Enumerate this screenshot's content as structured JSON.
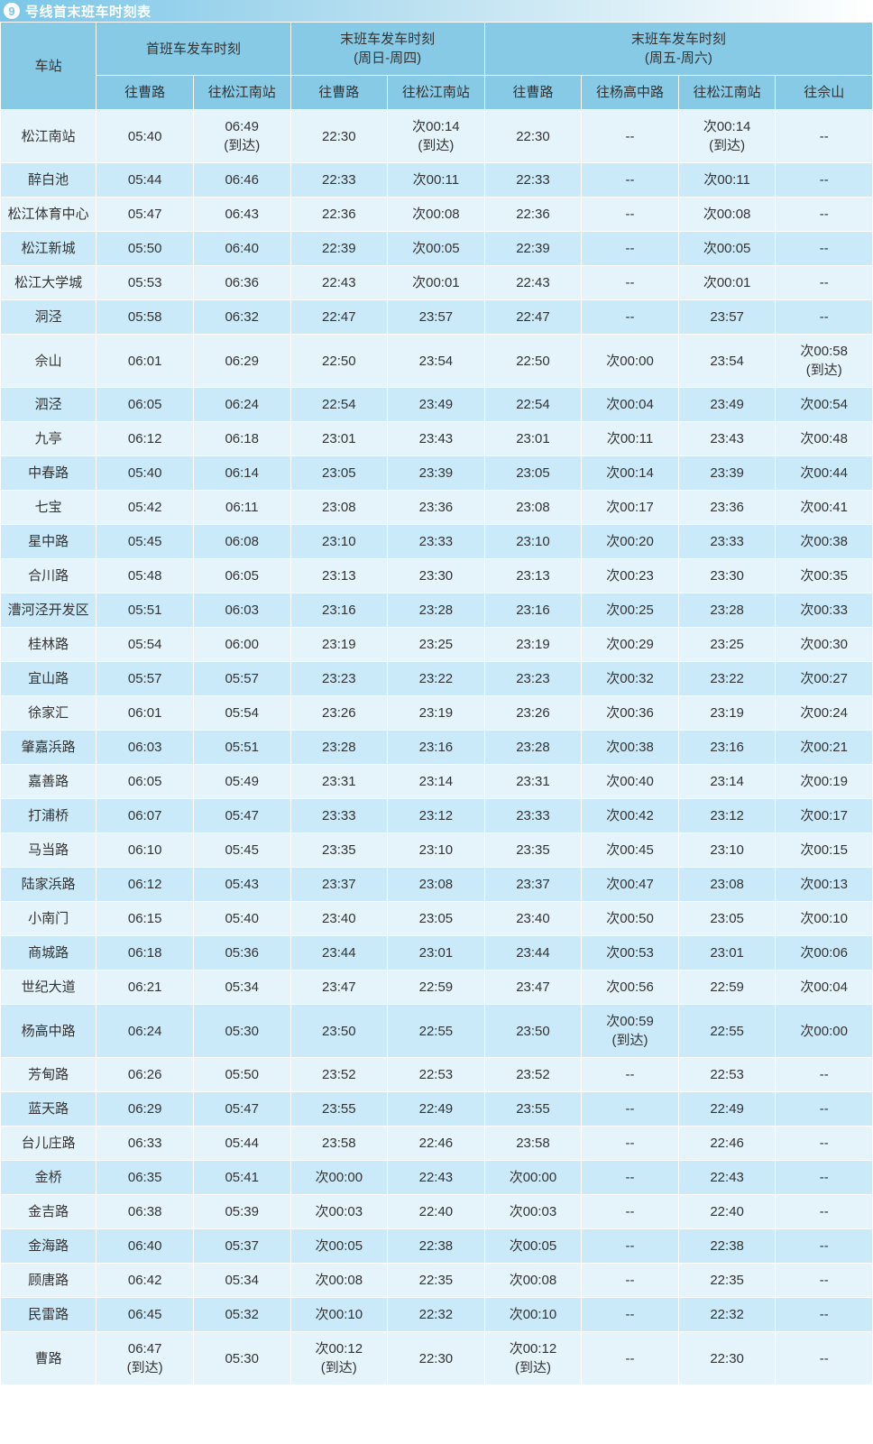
{
  "title": {
    "line_number": "9",
    "text": "号线首末班车时刻表"
  },
  "header": {
    "station": "车站",
    "first": "首班车发车时刻",
    "last_sun_thu": {
      "main": "末班车发车时刻",
      "sub": "(周日-周四)"
    },
    "last_fri_sat": {
      "main": "末班车发车时刻",
      "sub": "(周五-周六)"
    },
    "dir_caolu": "往曹路",
    "dir_sjnan": "往松江南站",
    "dir_yanggao": "往杨高中路",
    "dir_sheshan": "往佘山"
  },
  "rows": [
    {
      "station": "松江南站",
      "c": [
        "05:40",
        "06:49\n(到达)",
        "22:30",
        "次00:14\n(到达)",
        "22:30",
        "--",
        "次00:14\n(到达)",
        "--"
      ]
    },
    {
      "station": "醉白池",
      "c": [
        "05:44",
        "06:46",
        "22:33",
        "次00:11",
        "22:33",
        "--",
        "次00:11",
        "--"
      ]
    },
    {
      "station": "松江体育中心",
      "c": [
        "05:47",
        "06:43",
        "22:36",
        "次00:08",
        "22:36",
        "--",
        "次00:08",
        "--"
      ]
    },
    {
      "station": "松江新城",
      "c": [
        "05:50",
        "06:40",
        "22:39",
        "次00:05",
        "22:39",
        "--",
        "次00:05",
        "--"
      ]
    },
    {
      "station": "松江大学城",
      "c": [
        "05:53",
        "06:36",
        "22:43",
        "次00:01",
        "22:43",
        "--",
        "次00:01",
        "--"
      ]
    },
    {
      "station": "洞泾",
      "c": [
        "05:58",
        "06:32",
        "22:47",
        "23:57",
        "22:47",
        "--",
        "23:57",
        "--"
      ]
    },
    {
      "station": "佘山",
      "c": [
        "06:01",
        "06:29",
        "22:50",
        "23:54",
        "22:50",
        "次00:00",
        "23:54",
        "次00:58\n(到达)"
      ]
    },
    {
      "station": "泗泾",
      "c": [
        "06:05",
        "06:24",
        "22:54",
        "23:49",
        "22:54",
        "次00:04",
        "23:49",
        "次00:54"
      ]
    },
    {
      "station": "九亭",
      "c": [
        "06:12",
        "06:18",
        "23:01",
        "23:43",
        "23:01",
        "次00:11",
        "23:43",
        "次00:48"
      ]
    },
    {
      "station": "中春路",
      "c": [
        "05:40",
        "06:14",
        "23:05",
        "23:39",
        "23:05",
        "次00:14",
        "23:39",
        "次00:44"
      ]
    },
    {
      "station": "七宝",
      "c": [
        "05:42",
        "06:11",
        "23:08",
        "23:36",
        "23:08",
        "次00:17",
        "23:36",
        "次00:41"
      ]
    },
    {
      "station": "星中路",
      "c": [
        "05:45",
        "06:08",
        "23:10",
        "23:33",
        "23:10",
        "次00:20",
        "23:33",
        "次00:38"
      ]
    },
    {
      "station": "合川路",
      "c": [
        "05:48",
        "06:05",
        "23:13",
        "23:30",
        "23:13",
        "次00:23",
        "23:30",
        "次00:35"
      ]
    },
    {
      "station": "漕河泾开发区",
      "c": [
        "05:51",
        "06:03",
        "23:16",
        "23:28",
        "23:16",
        "次00:25",
        "23:28",
        "次00:33"
      ]
    },
    {
      "station": "桂林路",
      "c": [
        "05:54",
        "06:00",
        "23:19",
        "23:25",
        "23:19",
        "次00:29",
        "23:25",
        "次00:30"
      ]
    },
    {
      "station": "宜山路",
      "c": [
        "05:57",
        "05:57",
        "23:23",
        "23:22",
        "23:23",
        "次00:32",
        "23:22",
        "次00:27"
      ]
    },
    {
      "station": "徐家汇",
      "c": [
        "06:01",
        "05:54",
        "23:26",
        "23:19",
        "23:26",
        "次00:36",
        "23:19",
        "次00:24"
      ]
    },
    {
      "station": "肇嘉浜路",
      "c": [
        "06:03",
        "05:51",
        "23:28",
        "23:16",
        "23:28",
        "次00:38",
        "23:16",
        "次00:21"
      ]
    },
    {
      "station": "嘉善路",
      "c": [
        "06:05",
        "05:49",
        "23:31",
        "23:14",
        "23:31",
        "次00:40",
        "23:14",
        "次00:19"
      ]
    },
    {
      "station": "打浦桥",
      "c": [
        "06:07",
        "05:47",
        "23:33",
        "23:12",
        "23:33",
        "次00:42",
        "23:12",
        "次00:17"
      ]
    },
    {
      "station": "马当路",
      "c": [
        "06:10",
        "05:45",
        "23:35",
        "23:10",
        "23:35",
        "次00:45",
        "23:10",
        "次00:15"
      ]
    },
    {
      "station": "陆家浜路",
      "c": [
        "06:12",
        "05:43",
        "23:37",
        "23:08",
        "23:37",
        "次00:47",
        "23:08",
        "次00:13"
      ]
    },
    {
      "station": "小南门",
      "c": [
        "06:15",
        "05:40",
        "23:40",
        "23:05",
        "23:40",
        "次00:50",
        "23:05",
        "次00:10"
      ]
    },
    {
      "station": "商城路",
      "c": [
        "06:18",
        "05:36",
        "23:44",
        "23:01",
        "23:44",
        "次00:53",
        "23:01",
        "次00:06"
      ]
    },
    {
      "station": "世纪大道",
      "c": [
        "06:21",
        "05:34",
        "23:47",
        "22:59",
        "23:47",
        "次00:56",
        "22:59",
        "次00:04"
      ]
    },
    {
      "station": "杨高中路",
      "c": [
        "06:24",
        "05:30",
        "23:50",
        "22:55",
        "23:50",
        "次00:59\n(到达)",
        "22:55",
        "次00:00"
      ]
    },
    {
      "station": "芳甸路",
      "c": [
        "06:26",
        "05:50",
        "23:52",
        "22:53",
        "23:52",
        "--",
        "22:53",
        "--"
      ]
    },
    {
      "station": "蓝天路",
      "c": [
        "06:29",
        "05:47",
        "23:55",
        "22:49",
        "23:55",
        "--",
        "22:49",
        "--"
      ]
    },
    {
      "station": "台儿庄路",
      "c": [
        "06:33",
        "05:44",
        "23:58",
        "22:46",
        "23:58",
        "--",
        "22:46",
        "--"
      ]
    },
    {
      "station": "金桥",
      "c": [
        "06:35",
        "05:41",
        "次00:00",
        "22:43",
        "次00:00",
        "--",
        "22:43",
        "--"
      ]
    },
    {
      "station": "金吉路",
      "c": [
        "06:38",
        "05:39",
        "次00:03",
        "22:40",
        "次00:03",
        "--",
        "22:40",
        "--"
      ]
    },
    {
      "station": "金海路",
      "c": [
        "06:40",
        "05:37",
        "次00:05",
        "22:38",
        "次00:05",
        "--",
        "22:38",
        "--"
      ]
    },
    {
      "station": "顾唐路",
      "c": [
        "06:42",
        "05:34",
        "次00:08",
        "22:35",
        "次00:08",
        "--",
        "22:35",
        "--"
      ]
    },
    {
      "station": "民雷路",
      "c": [
        "06:45",
        "05:32",
        "次00:10",
        "22:32",
        "次00:10",
        "--",
        "22:32",
        "--"
      ]
    },
    {
      "station": "曹路",
      "c": [
        "06:47\n(到达)",
        "05:30",
        "次00:12\n(到达)",
        "22:30",
        "次00:12\n(到达)",
        "--",
        "22:30",
        "--"
      ]
    }
  ]
}
